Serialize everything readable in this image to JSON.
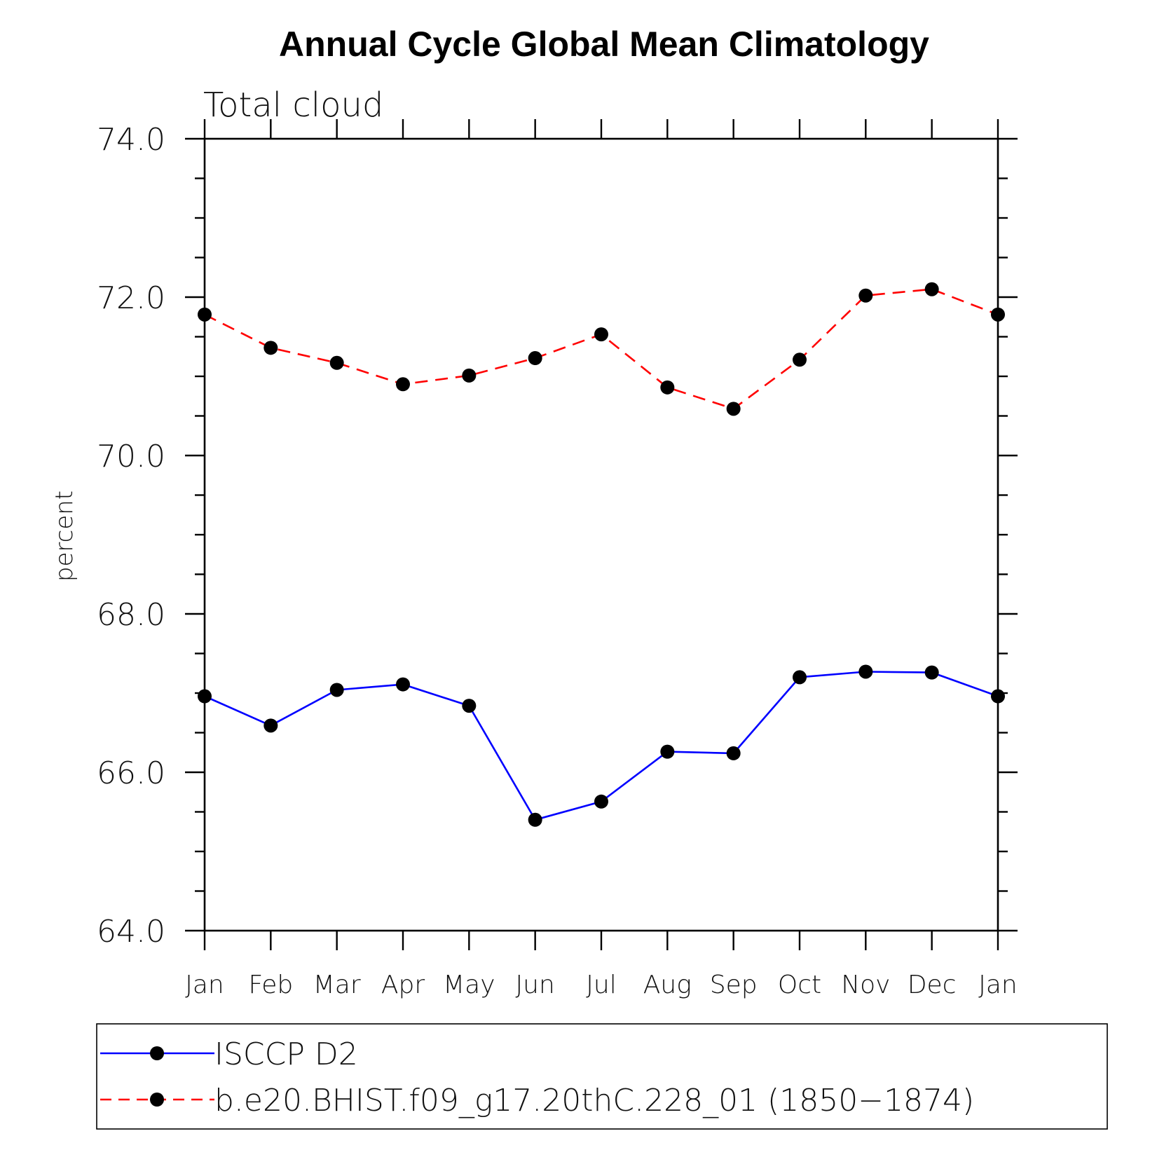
{
  "chart_data": {
    "type": "line",
    "title": "Annual Cycle Global Mean Climatology",
    "subtitle": "Total cloud",
    "xlabel": "",
    "ylabel": "percent",
    "ylim": [
      64.0,
      74.0
    ],
    "y_major_ticks": [
      "64.0",
      "66.0",
      "68.0",
      "70.0",
      "72.0",
      "74.0"
    ],
    "y_major_values": [
      64,
      66,
      68,
      70,
      72,
      74
    ],
    "categories": [
      "Jan",
      "Feb",
      "Mar",
      "Apr",
      "May",
      "Jun",
      "Jul",
      "Aug",
      "Sep",
      "Oct",
      "Nov",
      "Dec",
      "Jan"
    ],
    "grid": false,
    "legend_position": "bottom",
    "series": [
      {
        "name": "ISCCP D2",
        "color": "#0000ff",
        "dash": "solid",
        "marker": "filled-circle",
        "values": [
          66.96,
          66.59,
          67.04,
          67.11,
          66.84,
          65.4,
          65.63,
          66.26,
          66.24,
          67.2,
          67.27,
          67.26,
          66.96
        ]
      },
      {
        "name": "b.e20.BHIST.f09_g17.20thC.228_01 (1850−1874)",
        "color": "#ff0000",
        "dash": "dashed",
        "marker": "filled-circle",
        "values": [
          71.78,
          71.36,
          71.17,
          70.9,
          71.01,
          71.23,
          71.53,
          70.86,
          70.59,
          71.21,
          72.02,
          72.1,
          71.78
        ]
      }
    ]
  }
}
